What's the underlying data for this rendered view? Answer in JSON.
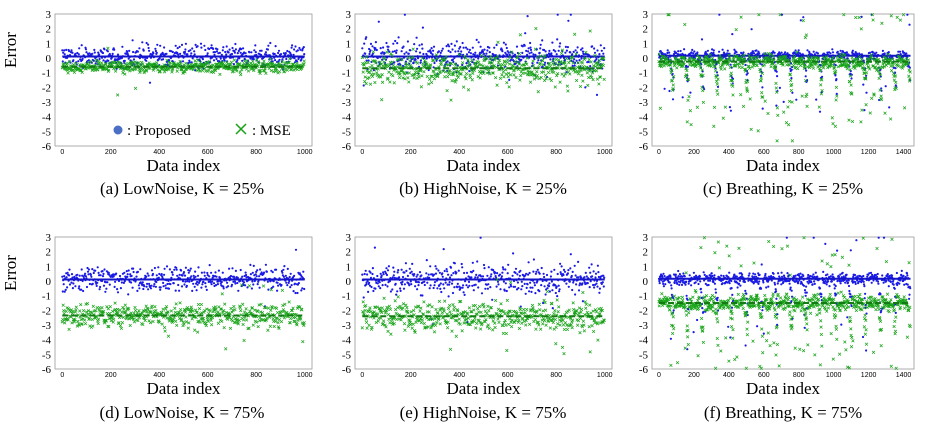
{
  "colors": {
    "proposed": "#1a1ae6",
    "mse": "#17a317",
    "legend_dot": "#4a6fc4"
  },
  "legend": {
    "proposed_label": ": Proposed",
    "mse_label": ": MSE"
  },
  "chart_data": [
    {
      "type": "scatter",
      "caption": "(a) LowNoise, K = 25%",
      "xlabel": "Data index",
      "ylabel": "Error",
      "ylim": [
        -6,
        3
      ],
      "yticks": [
        3,
        2,
        1,
        0,
        -1,
        -2,
        -3,
        -4,
        -5,
        -6
      ],
      "xlim": [
        -30,
        1030
      ],
      "xticks": [
        0,
        200,
        400,
        600,
        800,
        1000
      ],
      "n": 1000,
      "series": [
        {
          "name": "Proposed",
          "trend": 0.1,
          "spread": 0.75,
          "spike_rate": 0.01,
          "spike_size": 1.2
        },
        {
          "name": "MSE",
          "trend": -0.6,
          "spread": 0.4,
          "spike_rate": 0.01,
          "spike_size": 1.0
        }
      ]
    },
    {
      "type": "scatter",
      "caption": "(b) HighNoise, K = 25%",
      "xlabel": "Data index",
      "ylabel": "Error",
      "ylim": [
        -6,
        3
      ],
      "yticks": [
        3,
        2,
        1,
        0,
        -1,
        -2,
        -3,
        -4,
        -5,
        -6
      ],
      "xlim": [
        -30,
        1030
      ],
      "xticks": [
        0,
        200,
        400,
        600,
        800,
        1000
      ],
      "n": 1000,
      "series": [
        {
          "name": "Proposed",
          "trend": 0.1,
          "spread": 1.0,
          "spike_rate": 0.02,
          "spike_size": 1.5
        },
        {
          "name": "MSE",
          "trend": -0.7,
          "spread": 1.0,
          "spike_rate": 0.02,
          "spike_size": 1.2
        }
      ]
    },
    {
      "type": "scatter",
      "caption": "(c) Breathing, K = 25%",
      "xlabel": "Data index",
      "ylabel": "Error",
      "ylim": [
        -6,
        3
      ],
      "yticks": [
        3,
        2,
        1,
        0,
        -1,
        -2,
        -3,
        -4,
        -5,
        -6
      ],
      "xlim": [
        -40,
        1460
      ],
      "xticks": [
        0,
        200,
        400,
        600,
        800,
        1000,
        1200,
        1400
      ],
      "n": 1440,
      "series": [
        {
          "name": "Proposed",
          "trend": 0.15,
          "spread": 0.35,
          "spike_rate": 0.04,
          "spike_size": 1.8
        },
        {
          "name": "MSE",
          "trend": -0.25,
          "spread": 0.45,
          "spike_rate": 0.09,
          "spike_size": 2.2
        }
      ]
    },
    {
      "type": "scatter",
      "caption": "(d) LowNoise, K = 75%",
      "xlabel": "Data index",
      "ylabel": "Error",
      "ylim": [
        -6,
        3
      ],
      "yticks": [
        3,
        2,
        1,
        0,
        -1,
        -2,
        -3,
        -4,
        -5,
        -6
      ],
      "xlim": [
        -30,
        1030
      ],
      "xticks": [
        0,
        200,
        400,
        600,
        800,
        1000
      ],
      "n": 1000,
      "series": [
        {
          "name": "Proposed",
          "trend": 0.1,
          "spread": 0.8,
          "spike_rate": 0.01,
          "spike_size": 1.2
        },
        {
          "name": "MSE",
          "trend": -2.35,
          "spread": 0.8,
          "spike_rate": 0.02,
          "spike_size": 1.2
        }
      ]
    },
    {
      "type": "scatter",
      "caption": "(e) HighNoise, K = 75%",
      "xlabel": "Data index",
      "ylabel": "Error",
      "ylim": [
        -6,
        3
      ],
      "yticks": [
        3,
        2,
        1,
        0,
        -1,
        -2,
        -3,
        -4,
        -5,
        -6
      ],
      "xlim": [
        -30,
        1030
      ],
      "xticks": [
        0,
        200,
        400,
        600,
        800,
        1000
      ],
      "n": 1000,
      "series": [
        {
          "name": "Proposed",
          "trend": 0.1,
          "spread": 1.0,
          "spike_rate": 0.02,
          "spike_size": 1.5
        },
        {
          "name": "MSE",
          "trend": -2.4,
          "spread": 1.0,
          "spike_rate": 0.02,
          "spike_size": 1.3
        }
      ]
    },
    {
      "type": "scatter",
      "caption": "(f) Breathing, K = 75%",
      "xlabel": "Data index",
      "ylabel": "Error",
      "ylim": [
        -6,
        3
      ],
      "yticks": [
        3,
        2,
        1,
        0,
        -1,
        -2,
        -3,
        -4,
        -5,
        -6
      ],
      "xlim": [
        -40,
        1460
      ],
      "xticks": [
        0,
        200,
        400,
        600,
        800,
        1000,
        1200,
        1400
      ],
      "n": 1440,
      "series": [
        {
          "name": "Proposed",
          "trend": 0.15,
          "spread": 0.4,
          "spike_rate": 0.04,
          "spike_size": 2.0
        },
        {
          "name": "MSE",
          "trend": -1.5,
          "spread": 0.55,
          "spike_rate": 0.09,
          "spike_size": 2.3
        }
      ]
    }
  ]
}
